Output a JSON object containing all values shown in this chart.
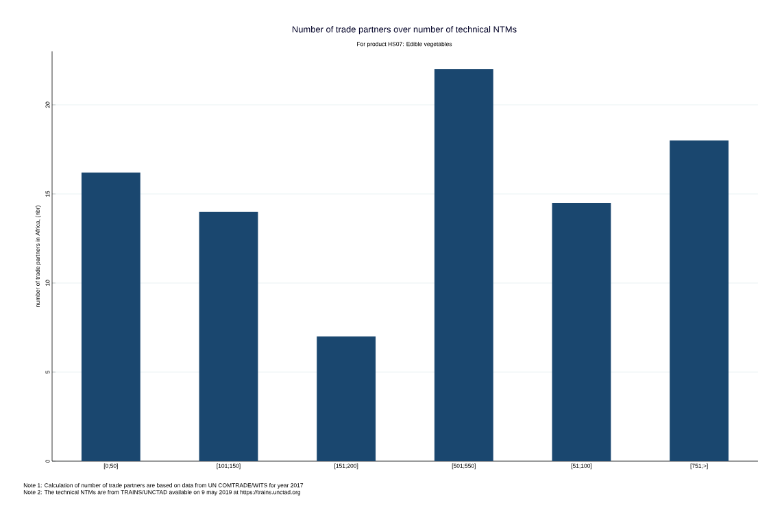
{
  "chart_data": {
    "type": "bar",
    "title": "Number of trade partners over number of technical NTMs",
    "subtitle": "For product HS07: Edible vegetables",
    "ylabel": "number of trade partners in Africa, (nbr)",
    "categories": [
      "[0;50]",
      "[101;150]",
      "[151;200]",
      "[501;550]",
      "[51;100]",
      "[751;>]"
    ],
    "values": [
      16.2,
      14,
      7,
      22,
      14.5,
      18
    ],
    "color": "#1a476f",
    "ylim": [
      0,
      23
    ],
    "yticks": [
      0,
      5,
      10,
      15,
      20
    ],
    "grid": "y",
    "annotations": [
      "Note 1: Calculation of number of trade partners are based on data from UN COMTRADE/WITS for year 2017",
      "Note 2: The technical NTMs are from TRAINS/UNCTAD available on 9 may 2019 at https://trains.unctad.org"
    ]
  }
}
